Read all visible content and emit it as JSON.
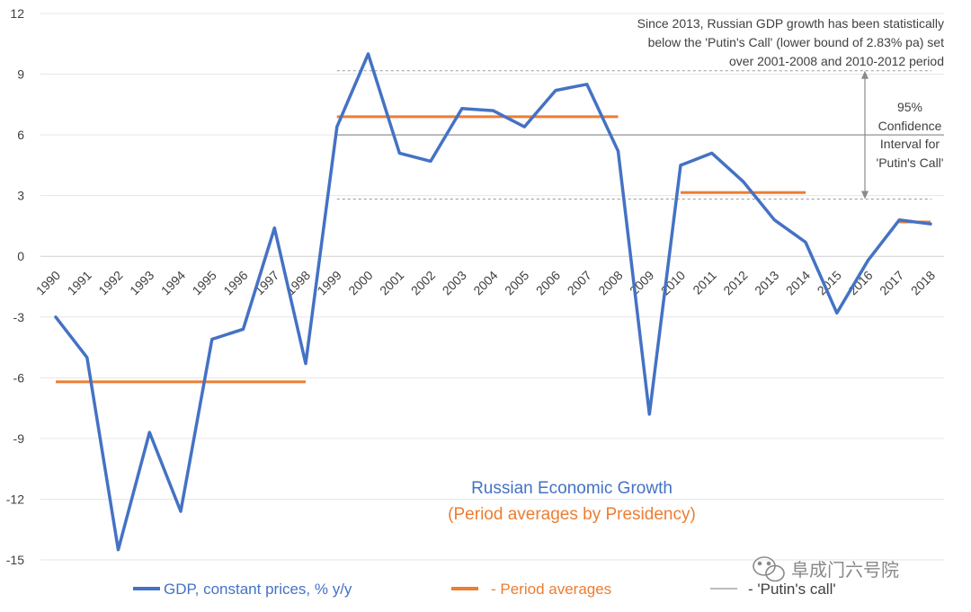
{
  "chart_data": {
    "type": "line",
    "title": "Russian Economic Growth",
    "subtitle": "(Period averages by Presidency)",
    "xlabel": "",
    "ylabel": "",
    "ylim": [
      -15,
      12
    ],
    "y_ticks": [
      12,
      9,
      6,
      3,
      0,
      -3,
      -6,
      -9,
      -12,
      -15
    ],
    "gridlines": true,
    "legend_position": "bottom",
    "categories": [
      "1990",
      "1991",
      "1992",
      "1993",
      "1994",
      "1995",
      "1996",
      "1997",
      "1998",
      "1999",
      "2000",
      "2001",
      "2002",
      "2003",
      "2004",
      "2005",
      "2006",
      "2007",
      "2008",
      "2009",
      "2010",
      "2011",
      "2012",
      "2013",
      "2014",
      "2015",
      "2016",
      "2017",
      "2018"
    ],
    "series": [
      {
        "name": "GDP, constant prices, % y/y",
        "color": "#4472C4",
        "values": [
          -3.0,
          -5.0,
          -14.5,
          -8.7,
          -12.6,
          -4.1,
          -3.6,
          1.4,
          -5.3,
          6.4,
          10.0,
          5.1,
          4.7,
          7.3,
          7.2,
          6.4,
          8.2,
          8.5,
          5.2,
          -7.8,
          4.5,
          5.1,
          3.7,
          1.8,
          0.7,
          -2.8,
          -0.2,
          1.8,
          1.6
        ]
      }
    ],
    "period_averages": {
      "name": "- Period averages",
      "color": "#ED7D31",
      "segments": [
        {
          "start": "1990",
          "end": "1998",
          "value": -6.2
        },
        {
          "start": "1999",
          "end": "2008",
          "value": 6.9
        },
        {
          "start": "2010",
          "end": "2014",
          "value": 3.15
        },
        {
          "start": "2017",
          "end": "2018",
          "value": 1.7
        }
      ]
    },
    "putins_call": {
      "name": "- 'Putin's call'",
      "color": "#A5A5A5",
      "value": 6.0,
      "start": "1999",
      "upper_bound": 9.17,
      "lower_bound": 2.83,
      "bound_start": "1999"
    },
    "annotations": {
      "top_note": [
        "Since 2013, Russian GDP growth has been statistically",
        "below the 'Putin's Call' (lower bound of 2.83% pa) set",
        "over 2001-2008 and 2010-2012 period"
      ],
      "ci_label": [
        "95%",
        "Confidence",
        "Interval for",
        "'Putin's Call'"
      ]
    }
  },
  "watermark": {
    "icon": "wechat-icon",
    "text": "阜成门六号院"
  }
}
